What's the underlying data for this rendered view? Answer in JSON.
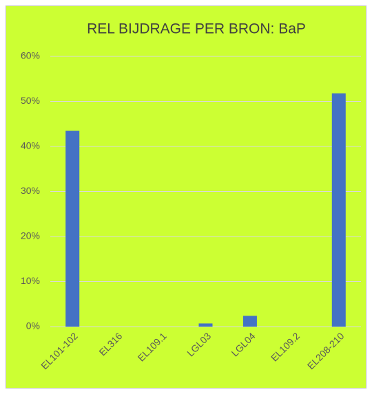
{
  "chart_data": {
    "type": "bar",
    "title": "REL BIJDRAGE PER BRON:  BaP",
    "categories": [
      "EL101-102",
      "EL316",
      "EL109.1",
      "LGL03",
      "LGL04",
      "EL109.2",
      "EL208-210"
    ],
    "values": [
      43.5,
      0,
      0,
      0.7,
      2.4,
      0,
      51.8
    ],
    "color": "#4472c4",
    "background": "#ccff33",
    "ylim": [
      0,
      60
    ],
    "yticks": [
      {
        "value": 0,
        "label": "0%"
      },
      {
        "value": 10,
        "label": "10%"
      },
      {
        "value": 20,
        "label": "20%"
      },
      {
        "value": 30,
        "label": "30%"
      },
      {
        "value": 40,
        "label": "40%"
      },
      {
        "value": 50,
        "label": "50%"
      },
      {
        "value": 60,
        "label": "60%"
      }
    ],
    "grid": true
  }
}
